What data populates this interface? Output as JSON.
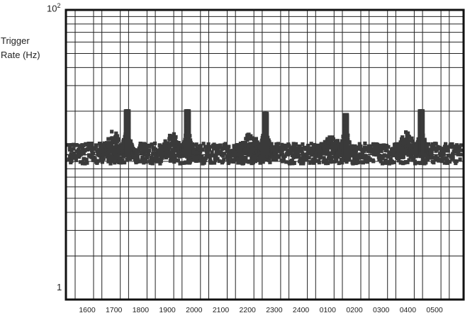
{
  "chart_data": {
    "type": "scatter",
    "title": "",
    "ylabel_line1": "Trigger",
    "ylabel_line2": "Rate (Hz)",
    "xlabel": "",
    "yscale": "log",
    "ylim": [
      1,
      100
    ],
    "ytick_top_base": "10",
    "ytick_top_exp": "2",
    "ytick_bottom": "1",
    "categories": [
      "1600",
      "1700",
      "1800",
      "1900",
      "2000",
      "2100",
      "2200",
      "2300",
      "2400",
      "0100",
      "0200",
      "0300",
      "0400",
      "0500"
    ],
    "grid": true,
    "baseline_rate": 10.2,
    "bursts": [
      {
        "center": "1730",
        "broad_peak": 14,
        "narrow_peak": 20
      },
      {
        "center": "1945",
        "broad_peak": 13.5,
        "narrow_peak": 20
      },
      {
        "center": "2240",
        "broad_peak": 13.5,
        "narrow_peak": 19.5
      },
      {
        "center": "0140",
        "broad_peak": 13.5,
        "narrow_peak": 19
      },
      {
        "center": "0430",
        "broad_peak": 14,
        "narrow_peak": 20
      }
    ],
    "marker_color": "#3a3a3a",
    "grid_color": "#222222"
  }
}
